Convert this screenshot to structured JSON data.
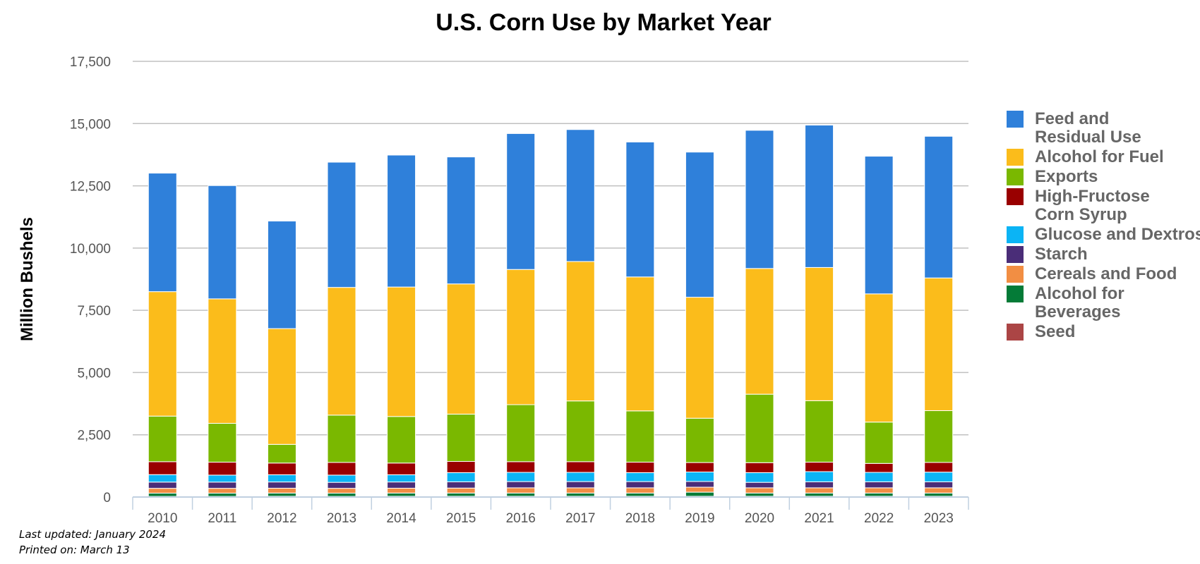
{
  "chart_data": {
    "type": "bar",
    "stacked": true,
    "title": "U.S. Corn Use by Market Year",
    "xlabel": "",
    "ylabel": "Million Bushels",
    "ylim": [
      0,
      17500
    ],
    "yticks": [
      0,
      2500,
      5000,
      7500,
      10000,
      12500,
      15000,
      17500
    ],
    "ytick_labels": [
      "0",
      "2,500",
      "5,000",
      "7,500",
      "10,000",
      "12,500",
      "15,000",
      "17,500"
    ],
    "grid": true,
    "legend_position": "right",
    "categories": [
      "2010",
      "2011",
      "2012",
      "2013",
      "2014",
      "2015",
      "2016",
      "2017",
      "2018",
      "2019",
      "2020",
      "2021",
      "2022",
      "2023"
    ],
    "series": [
      {
        "name": "Seed",
        "color": "#ab4545",
        "values": [
          25,
          25,
          30,
          25,
          30,
          30,
          30,
          30,
          30,
          30,
          30,
          30,
          30,
          30
        ]
      },
      {
        "name": "Alcohol for Beverages",
        "color": "#047b37",
        "values": [
          130,
          130,
          130,
          130,
          130,
          130,
          130,
          130,
          130,
          165,
          130,
          130,
          130,
          130
        ]
      },
      {
        "name": "Cereals and Food",
        "color": "#f28e43",
        "values": [
          195,
          195,
          195,
          195,
          195,
          200,
          210,
          210,
          210,
          200,
          210,
          210,
          210,
          210
        ]
      },
      {
        "name": "Starch",
        "color": "#4a2d78",
        "values": [
          250,
          250,
          250,
          240,
          250,
          250,
          250,
          250,
          250,
          230,
          220,
          240,
          240,
          240
        ]
      },
      {
        "name": "Glucose and Dextrose",
        "color": "#0bb4f5",
        "values": [
          300,
          280,
          290,
          290,
          290,
          370,
          370,
          370,
          360,
          380,
          390,
          410,
          380,
          390
        ]
      },
      {
        "name": "High-Fructose Corn Syrup",
        "color": "#990000",
        "values": [
          520,
          520,
          470,
          510,
          470,
          450,
          430,
          430,
          420,
          380,
          400,
          380,
          360,
          390
        ]
      },
      {
        "name": "Exports",
        "color": "#7ab800",
        "values": [
          1830,
          1560,
          750,
          1900,
          1870,
          1900,
          2290,
          2440,
          2060,
          1780,
          2750,
          2470,
          1660,
          2080
        ]
      },
      {
        "name": "Alcohol for Fuel",
        "color": "#fbbc1b",
        "values": [
          5000,
          5000,
          4650,
          5130,
          5200,
          5230,
          5430,
          5600,
          5380,
          4860,
          5050,
          5350,
          5150,
          5330
        ]
      },
      {
        "name": "Feed and Residual Use",
        "color": "#2f80da",
        "values": [
          4760,
          4550,
          4320,
          5030,
          5300,
          5100,
          5460,
          5300,
          5420,
          5830,
          5550,
          5720,
          5530,
          5690
        ]
      }
    ],
    "legend_order": [
      "Feed and Residual Use",
      "Alcohol for Fuel",
      "Exports",
      "High-Fructose Corn Syrup",
      "Glucose and Dextrose",
      "Starch",
      "Cereals and Food",
      "Alcohol for Beverages",
      "Seed"
    ]
  },
  "footnotes": {
    "last_updated": "Last updated: January 2024",
    "printed_on": "Printed on: March 13"
  }
}
